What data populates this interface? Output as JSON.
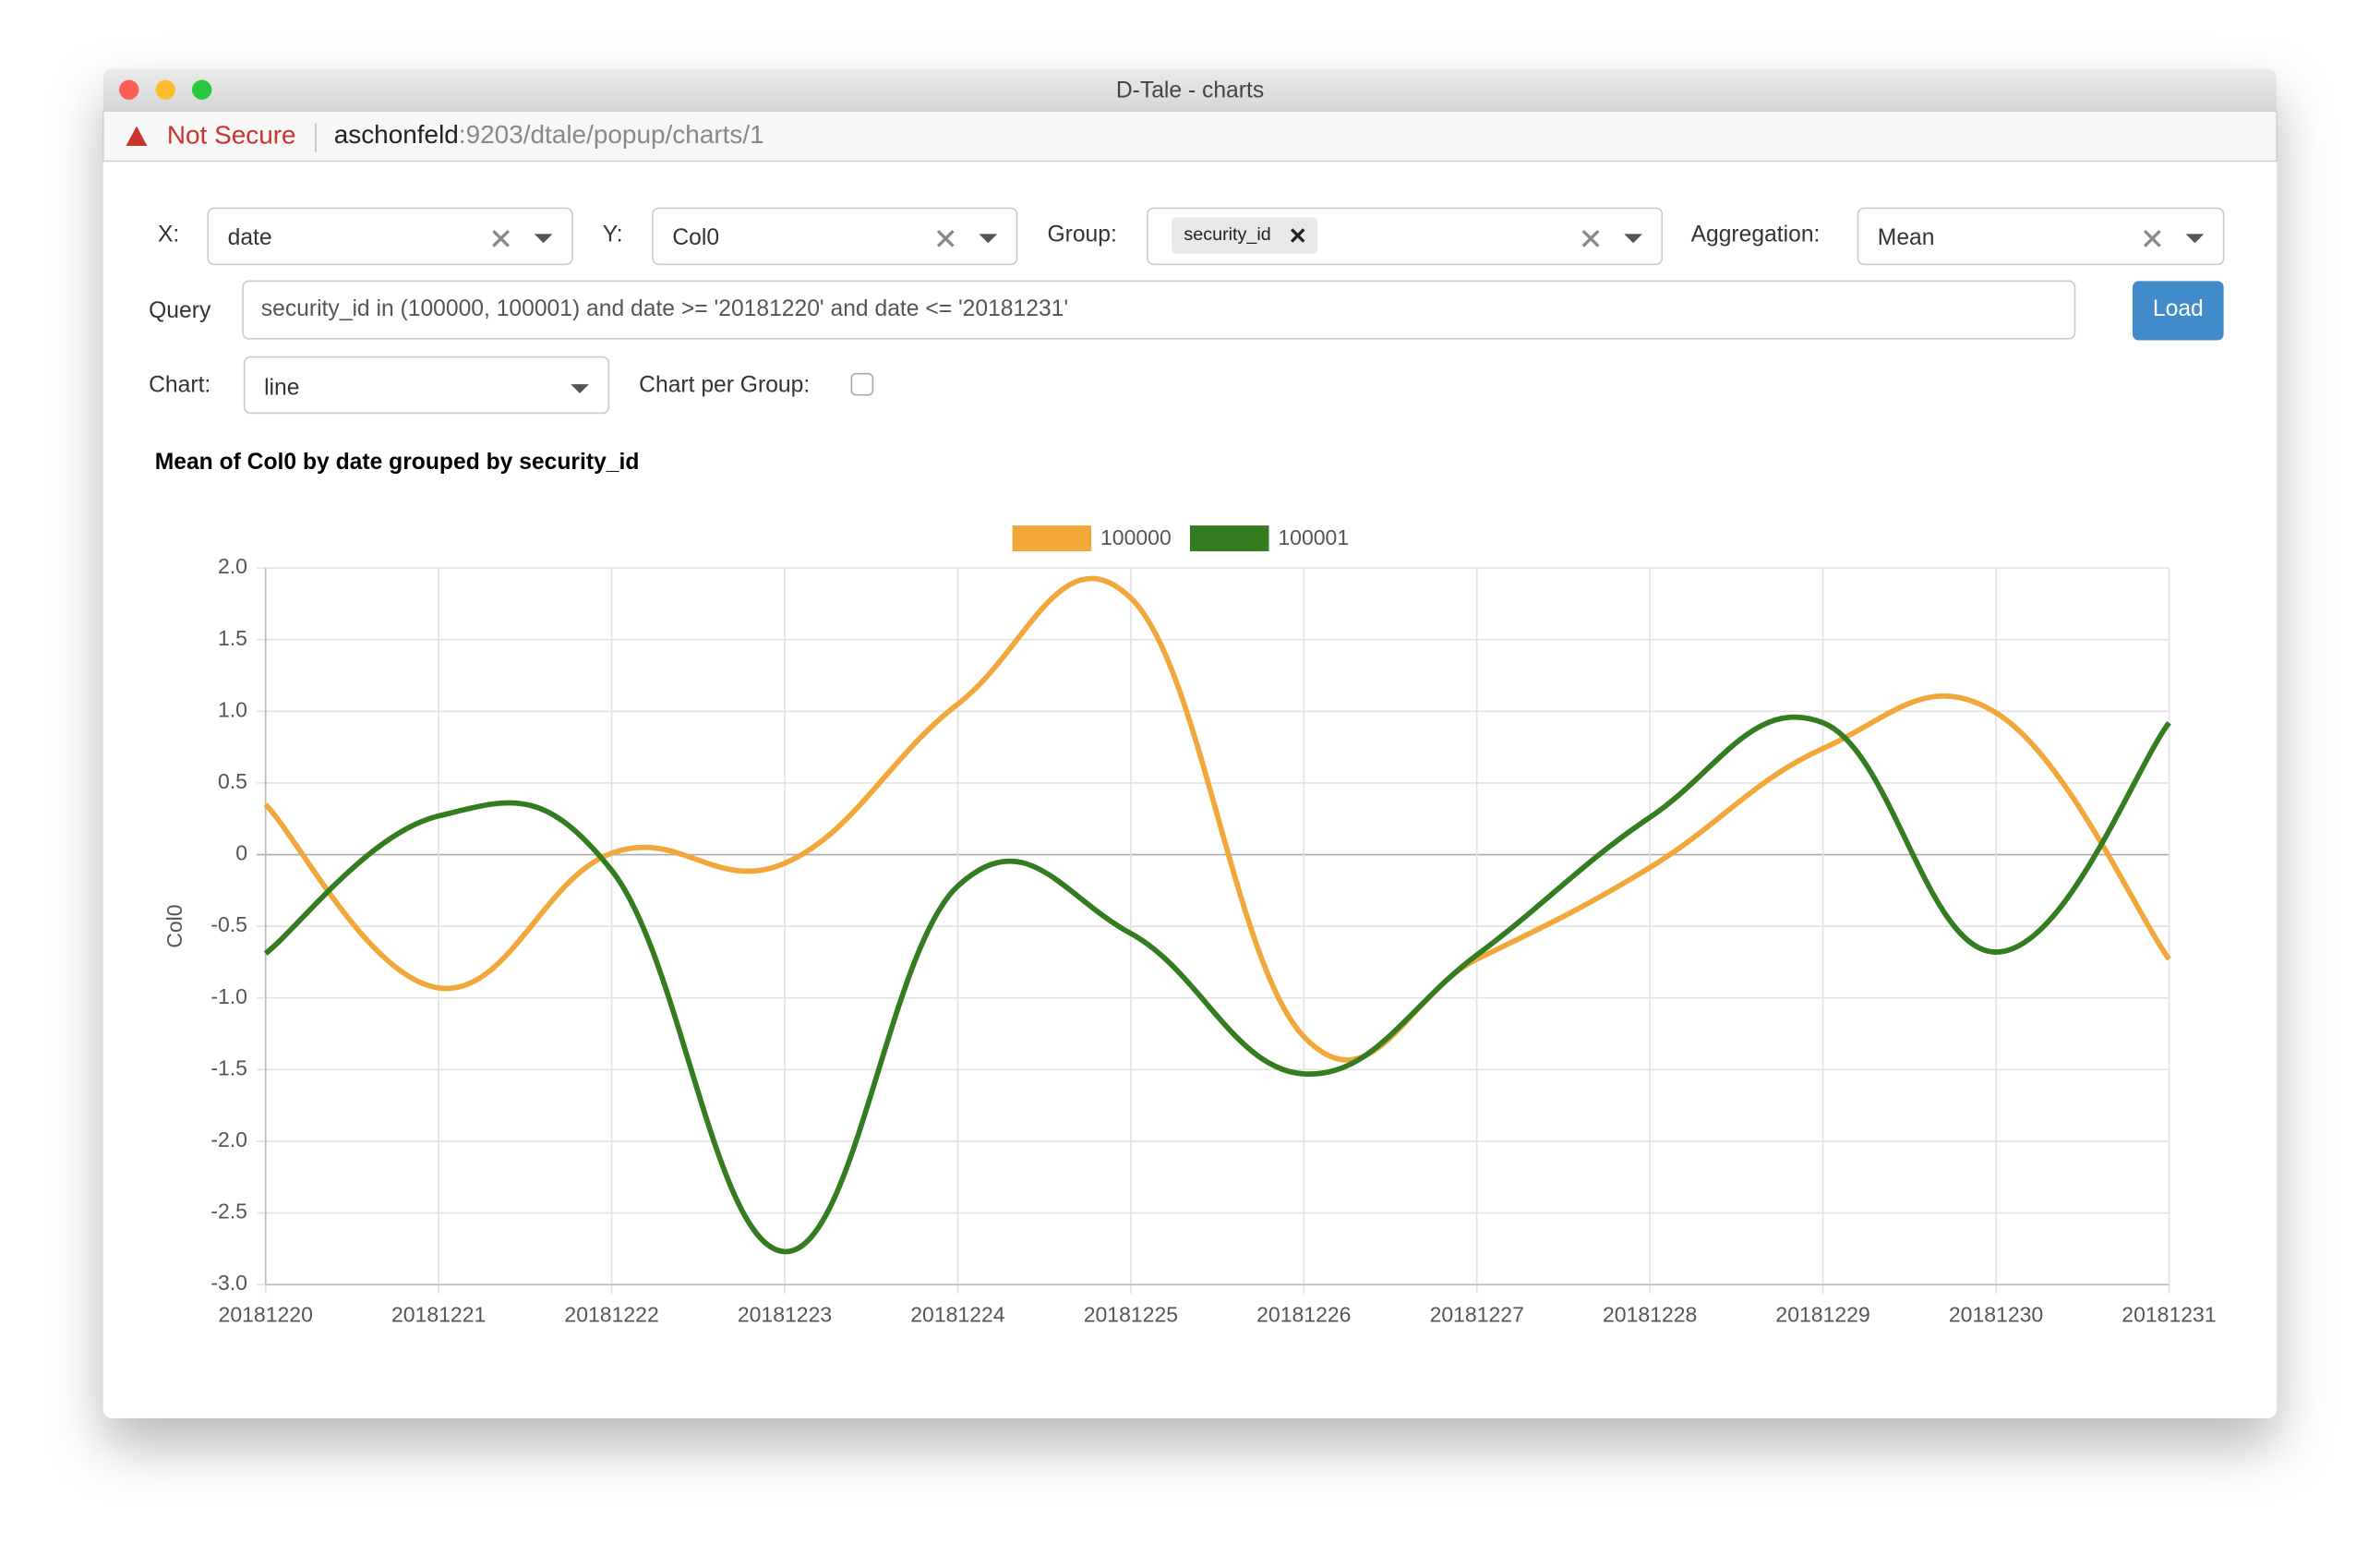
{
  "window": {
    "title": "D-Tale - charts"
  },
  "address_bar": {
    "security": "Not Secure",
    "host": "aschonfeld",
    "path": ":9203/dtale/popup/charts/1"
  },
  "controls": {
    "x_label": "X:",
    "x_value": "date",
    "y_label": "Y:",
    "y_value": "Col0",
    "group_label": "Group:",
    "group_tag": "security_id",
    "aggregation_label": "Aggregation:",
    "aggregation_value": "Mean",
    "query_label": "Query",
    "query_value": "security_id in (100000, 100001) and date >= '20181220' and date <= '20181231'",
    "load_button": "Load",
    "chart_label": "Chart:",
    "chart_value": "line",
    "chart_per_group_label": "Chart per Group:"
  },
  "chart_data": {
    "type": "line",
    "title": "Mean of Col0 by date grouped by security_id",
    "y_label": "Col0",
    "categories": [
      "20181220",
      "20181221",
      "20181222",
      "20181223",
      "20181224",
      "20181225",
      "20181226",
      "20181227",
      "20181228",
      "20181229",
      "20181230",
      "20181231"
    ],
    "series": [
      {
        "name": "100000",
        "color": "#f2a73b",
        "values": [
          0.35,
          -0.93,
          0.01,
          -0.06,
          1.05,
          1.79,
          -1.27,
          -0.73,
          -0.09,
          0.74,
          0.99,
          -0.73
        ]
      },
      {
        "name": "100001",
        "color": "#347c20",
        "values": [
          -0.69,
          0.27,
          -0.11,
          -2.77,
          -0.22,
          -0.55,
          -1.53,
          -0.7,
          0.26,
          0.92,
          -0.68,
          0.92
        ]
      }
    ],
    "ylim": [
      -3,
      2
    ],
    "yticks": [
      {
        "value": -3,
        "label": "-3.0"
      },
      -2.5,
      {
        "value": -2,
        "label": "-2.0"
      },
      -1.5,
      {
        "value": -1,
        "label": "-1.0"
      },
      -0.5,
      0,
      0.5,
      {
        "value": 1,
        "label": "1.0"
      },
      1.5,
      {
        "value": 2,
        "label": "2.0"
      }
    ],
    "grid": true,
    "legend": "top"
  }
}
